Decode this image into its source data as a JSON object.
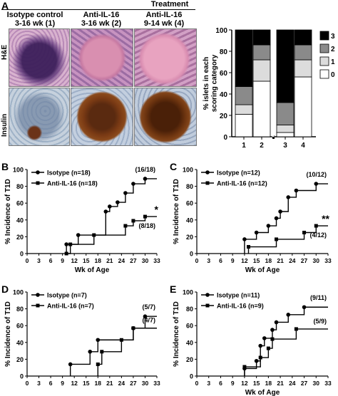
{
  "panel_A": {
    "letter": "A",
    "treatment_header": "Treatment",
    "columns": [
      {
        "line1": "Isotype control",
        "line2": "3-16 wk (1)"
      },
      {
        "line1": "Anti-IL-16",
        "line2": "3-16 wk (2)"
      },
      {
        "line1": "Anti-IL-16",
        "line2": "9-14 wk (4)"
      }
    ],
    "row_labels": [
      "H&E",
      "Insulin"
    ],
    "image_descriptions": [
      "H&E stained islet with heavy lymphocytic infiltrate (purple)",
      "H&E stained intact islet (pink)",
      "H&E stained intact islet (pink)",
      "insulin stain, small brown islet remnant",
      "insulin stain, large brown-stained islet",
      "insulin stain, large brown-stained islet"
    ]
  },
  "colors": {
    "black": "#000000",
    "dark_gray": "#8a8a8a",
    "light_gray": "#dcdcdc",
    "white": "#ffffff"
  },
  "chart_data": [
    {
      "panel": "A",
      "type": "bar",
      "stacked": true,
      "ylabel": "% islets in each scoring category",
      "ylim": [
        0,
        100
      ],
      "yticks": [
        "0",
        "20",
        "40",
        "60",
        "80",
        "100"
      ],
      "categories": [
        "1",
        "2",
        "3",
        "4"
      ],
      "legend": [
        "3",
        "2",
        "1",
        "0"
      ],
      "series": [
        {
          "name": "0",
          "color": "#ffffff",
          "values": [
            21,
            52,
            4,
            56
          ]
        },
        {
          "name": "1",
          "color": "#dcdcdc",
          "values": [
            9,
            20,
            7,
            16
          ]
        },
        {
          "name": "2",
          "color": "#8a8a8a",
          "values": [
            17,
            14,
            21,
            14
          ]
        },
        {
          "name": "3",
          "color": "#000000",
          "values": [
            53,
            14,
            68,
            14
          ]
        }
      ]
    },
    {
      "panel": "B",
      "type": "line",
      "step": true,
      "xlabel": "Wk of Age",
      "ylabel": "% Incidence of T1D",
      "xlim": [
        0,
        33
      ],
      "ylim": [
        0,
        100
      ],
      "xticks": [
        "0",
        "3",
        "6",
        "9",
        "12",
        "15",
        "18",
        "21",
        "24",
        "27",
        "30",
        "33"
      ],
      "yticks": [
        "0",
        "20",
        "40",
        "60",
        "80",
        "100"
      ],
      "series": [
        {
          "name": "Isotype (n=18)",
          "marker": "circle",
          "end_label": "(16/18)",
          "x": [
            10,
            11,
            13,
            20,
            21,
            23,
            25,
            27,
            30,
            33
          ],
          "y": [
            11,
            11,
            22,
            50,
            56,
            61,
            72,
            83,
            89,
            89
          ]
        },
        {
          "name": "Anti-IL-16 (n=18)",
          "marker": "square",
          "end_label": "(8/18)",
          "star": "*",
          "x": [
            10,
            11,
            13,
            17,
            20,
            25,
            27,
            30,
            33
          ],
          "y": [
            0,
            11,
            11,
            22,
            22,
            33,
            39,
            44,
            44
          ]
        }
      ]
    },
    {
      "panel": "C",
      "type": "line",
      "step": true,
      "xlabel": "Wk of Age",
      "ylabel": "% Incidence of T1D",
      "xlim": [
        0,
        33
      ],
      "ylim": [
        0,
        100
      ],
      "xticks": [
        "0",
        "3",
        "6",
        "9",
        "12",
        "15",
        "18",
        "21",
        "24",
        "27",
        "30",
        "33"
      ],
      "yticks": [
        "0",
        "20",
        "40",
        "60",
        "80",
        "100"
      ],
      "series": [
        {
          "name": "Isotype (n=12)",
          "marker": "circle",
          "end_label": "(10/12)",
          "x": [
            12,
            15,
            18,
            20,
            21,
            23,
            25,
            27,
            30,
            33
          ],
          "y": [
            17,
            25,
            33,
            42,
            50,
            67,
            75,
            75,
            83,
            83
          ]
        },
        {
          "name": "Anti-IL-16 (n=12)",
          "marker": "square",
          "end_label": "(4/12)",
          "star": "**",
          "x": [
            13,
            20,
            23,
            27,
            30,
            33
          ],
          "y": [
            8,
            17,
            17,
            25,
            33,
            33
          ]
        }
      ]
    },
    {
      "panel": "D",
      "type": "line",
      "step": true,
      "xlabel": "",
      "ylabel": "% Incidence of T1D",
      "xlim": [
        0,
        33
      ],
      "ylim": [
        0,
        100
      ],
      "xticks": [
        "0",
        "3",
        "6",
        "9",
        "12",
        "15",
        "18",
        "21",
        "24",
        "27",
        "30",
        "33"
      ],
      "yticks": [
        "0",
        "20",
        "40",
        "60",
        "80",
        "100"
      ],
      "series": [
        {
          "name": "Isotype (n=7)",
          "marker": "circle",
          "end_label": "(5/7)",
          "x": [
            11,
            16,
            18,
            24,
            27,
            30,
            33
          ],
          "y": [
            14,
            29,
            43,
            43,
            57,
            71,
            71
          ]
        },
        {
          "name": "Anti-IL-16 (n=7)",
          "marker": "square",
          "end_label": "(4/7)",
          "x": [
            18,
            19,
            24,
            27,
            33
          ],
          "y": [
            14,
            29,
            43,
            57,
            57
          ]
        }
      ]
    },
    {
      "panel": "E",
      "type": "line",
      "step": true,
      "xlabel": "Wk of Age",
      "ylabel": "% Incidence of T1D",
      "xlim": [
        0,
        33
      ],
      "ylim": [
        0,
        100
      ],
      "xticks": [
        "0",
        "3",
        "6",
        "9",
        "12",
        "15",
        "18",
        "21",
        "24",
        "27",
        "30",
        "33"
      ],
      "yticks": [
        "0",
        "20",
        "40",
        "60",
        "80",
        "100"
      ],
      "series": [
        {
          "name": "Isotype (n=11)",
          "marker": "circle",
          "end_label": "(9/11)",
          "x": [
            12,
            15,
            16,
            17,
            18,
            19,
            20,
            23,
            27,
            33
          ],
          "y": [
            9,
            18,
            36,
            45,
            45,
            55,
            64,
            73,
            82,
            82
          ]
        },
        {
          "name": "Anti-IL-16 (n=9)",
          "marker": "square",
          "end_label": "(5/9)",
          "x": [
            12,
            13,
            16,
            18,
            19,
            21,
            25,
            33
          ],
          "y": [
            11,
            11,
            22,
            33,
            44,
            44,
            56,
            56
          ]
        }
      ]
    }
  ]
}
